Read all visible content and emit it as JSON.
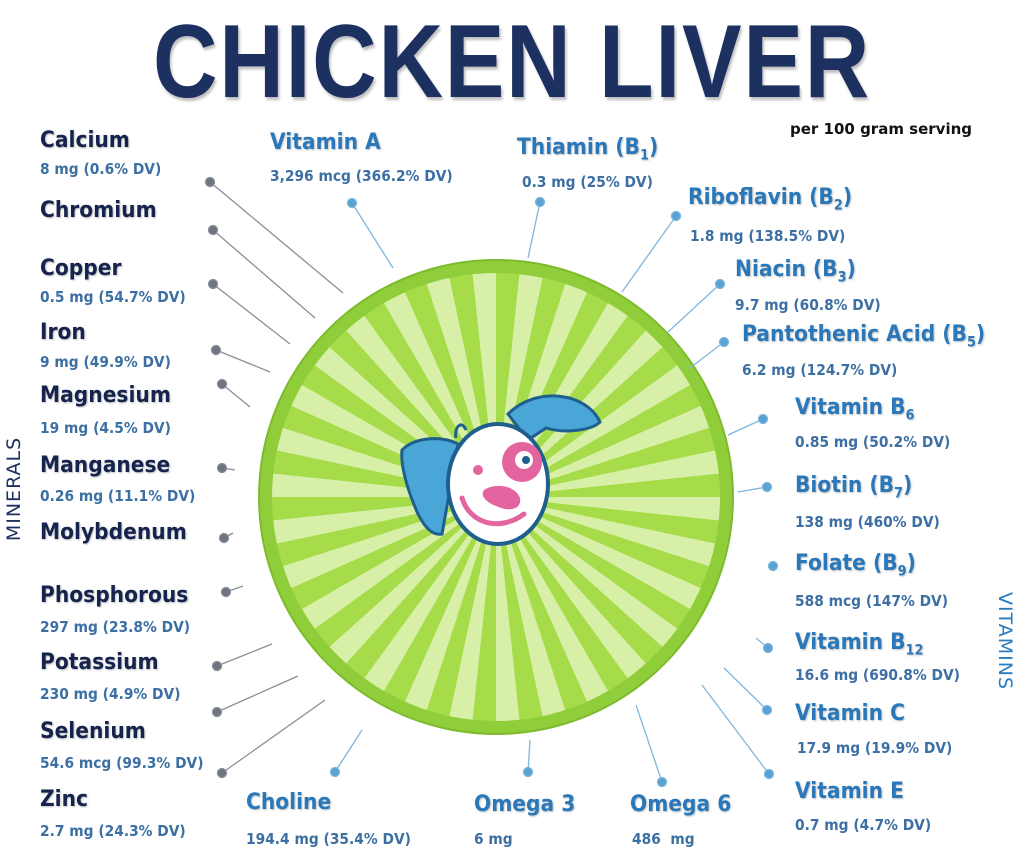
{
  "title": "CHICKEN LIVER",
  "serving": "per 100 gram serving",
  "section_labels": {
    "minerals": "MINERALS",
    "vitamins": "VITAMINS"
  },
  "colors": {
    "title": "#1d3160",
    "minerals": "#15234d",
    "vitamins": "#2a78ba",
    "values": "#3c6fa3",
    "disc": "#8fce3a"
  },
  "minerals": [
    {
      "name": "Calcium",
      "value": "8 mg (0.6% DV)"
    },
    {
      "name": "Chromium",
      "value": ""
    },
    {
      "name": "Copper",
      "value": "0.5 mg (54.7% DV)"
    },
    {
      "name": "Iron",
      "value": "9 mg (49.9% DV)"
    },
    {
      "name": "Magnesium",
      "value": "19 mg (4.5% DV)"
    },
    {
      "name": "Manganese",
      "value": "0.26 mg (11.1% DV)"
    },
    {
      "name": "Molybdenum",
      "value": ""
    },
    {
      "name": "Phosphorous",
      "value": "297 mg (23.8% DV)"
    },
    {
      "name": "Potassium",
      "value": "230 mg (4.9% DV)"
    },
    {
      "name": "Selenium",
      "value": "54.6 mcg (99.3% DV)"
    },
    {
      "name": "Zinc",
      "value": "2.7 mg (24.3% DV)"
    }
  ],
  "vitamins": [
    {
      "name": "Vitamin A",
      "sub": "",
      "suffix": "",
      "value": "3,296 mcg (366.2% DV)"
    },
    {
      "name": "Thiamin (B",
      "sub": "1",
      "suffix": ")",
      "value": "0.3 mg (25% DV)"
    },
    {
      "name": "Riboflavin (B",
      "sub": "2",
      "suffix": ")",
      "value": "1.8 mg (138.5% DV)"
    },
    {
      "name": "Niacin (B",
      "sub": "3",
      "suffix": ")",
      "value": "9.7 mg (60.8% DV)"
    },
    {
      "name": "Pantothenic Acid (B",
      "sub": "5",
      "suffix": ")",
      "value": "6.2 mg (124.7% DV)"
    },
    {
      "name": "Vitamin B",
      "sub": "6",
      "suffix": "",
      "value": "0.85 mg (50.2% DV)"
    },
    {
      "name": "Biotin (B",
      "sub": "7",
      "suffix": ")",
      "value": "138 mg (460% DV)"
    },
    {
      "name": "Folate (B",
      "sub": "9",
      "suffix": ")",
      "value": "588 mcg (147% DV)"
    },
    {
      "name": "Vitamin B",
      "sub": "12",
      "suffix": "",
      "value": "16.6 mg (690.8% DV)"
    },
    {
      "name": "Vitamin C",
      "sub": "",
      "suffix": "",
      "value": "17.9 mg (19.9% DV)"
    },
    {
      "name": "Vitamin E",
      "sub": "",
      "suffix": "",
      "value": "0.7 mg (4.7% DV)"
    },
    {
      "name": "Choline",
      "sub": "",
      "suffix": "",
      "value": "194.4 mg (35.4% DV)"
    },
    {
      "name": "Omega 3",
      "sub": "",
      "suffix": "",
      "value": "6 mg"
    },
    {
      "name": "Omega 6",
      "sub": "",
      "suffix": "",
      "value": "486  mg"
    }
  ]
}
